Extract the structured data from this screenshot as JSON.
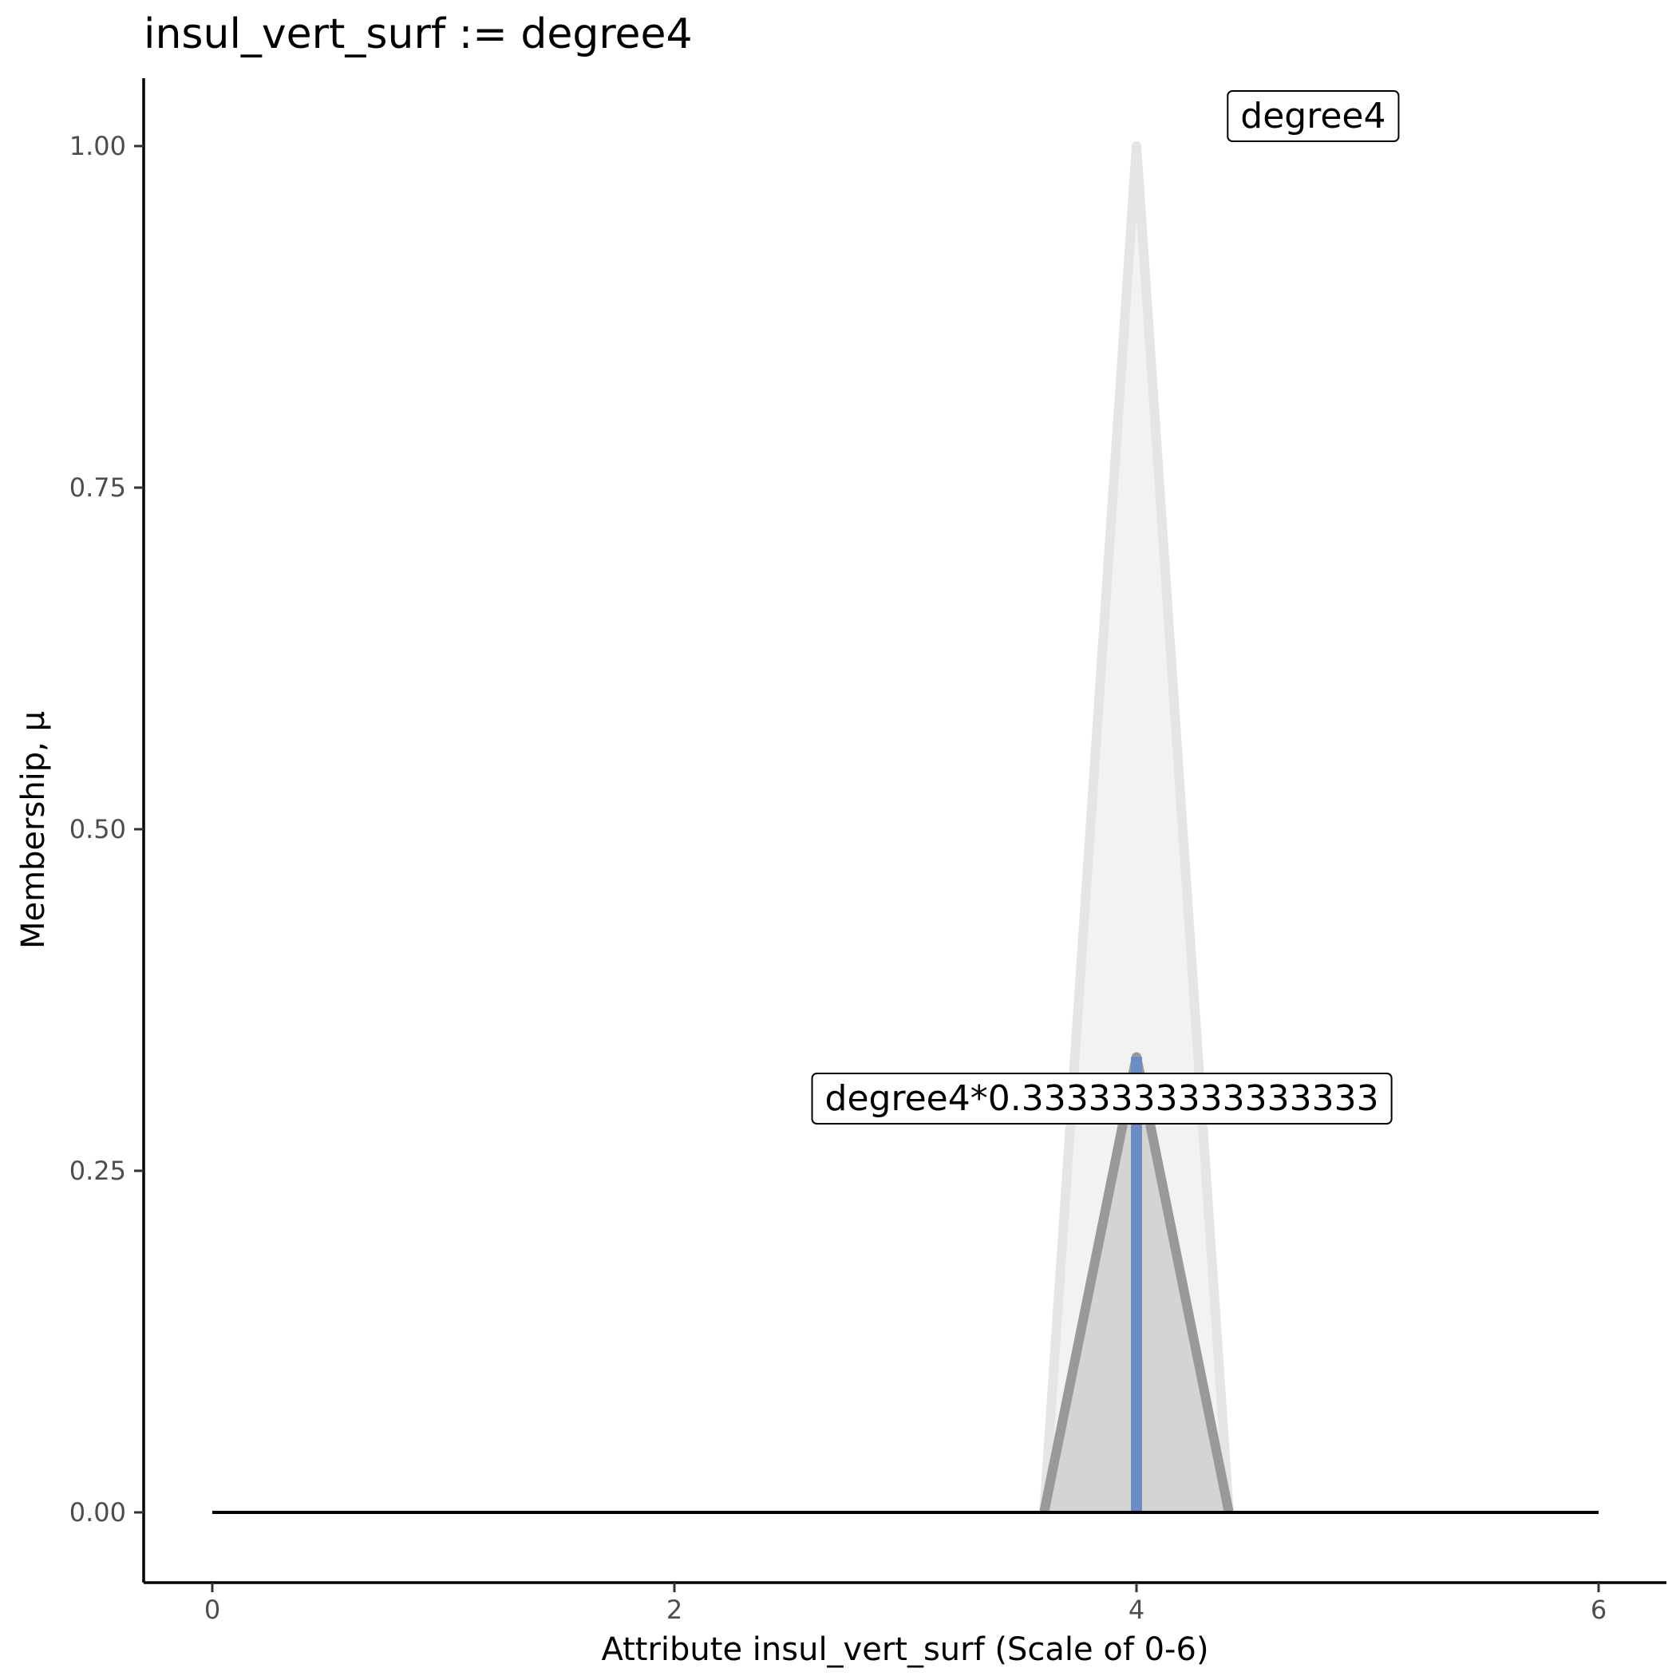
{
  "chart_data": {
    "type": "line",
    "title": "insul_vert_surf := degree4",
    "xlabel": "Attribute insul_vert_surf (Scale of 0-6)",
    "ylabel": "Membership, μ",
    "xlim": [
      -0.3,
      6.3
    ],
    "ylim": [
      -0.05,
      1.05
    ],
    "x_ticks": [
      0,
      2,
      4,
      6
    ],
    "y_ticks": [
      0.0,
      0.25,
      0.5,
      0.75,
      1.0
    ],
    "x_tick_labels": [
      "0",
      "2",
      "4",
      "6"
    ],
    "y_tick_labels": [
      "0.00",
      "0.25",
      "0.50",
      "0.75",
      "1.00"
    ],
    "grid": false,
    "series": [
      {
        "name": "degree4",
        "x": [
          3.6,
          4.0,
          4.4
        ],
        "y": [
          0.0,
          1.0,
          0.0
        ],
        "line_color": "#e5e5e5",
        "fill_color": "#f2f2f2"
      },
      {
        "name": "degree4*0.3333333333333333",
        "x": [
          3.6,
          4.0,
          4.4
        ],
        "y": [
          0.0,
          0.3333333333333333,
          0.0
        ],
        "line_color": "#999999",
        "fill_color": "#d4d4d4"
      }
    ],
    "baseline": {
      "x": [
        0,
        6
      ],
      "y": 0.0,
      "color": "#000000"
    },
    "value_marker": {
      "x": 4.0,
      "y": [
        0.0,
        0.3333333333333333
      ],
      "color": "#6b8cc4"
    },
    "annotations": [
      {
        "text": "degree4",
        "x": 4.45,
        "y": 1.0
      },
      {
        "text": "degree4*0.3333333333333333",
        "x": 3.85,
        "y": 0.3
      }
    ]
  }
}
